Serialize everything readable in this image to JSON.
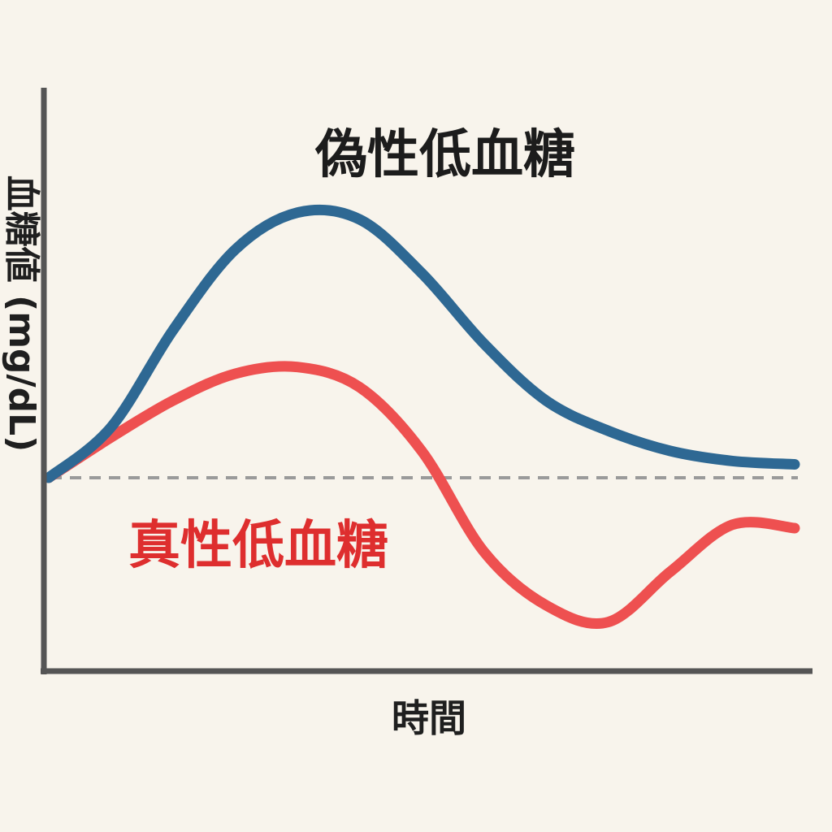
{
  "chart_data": {
    "type": "line",
    "xlabel": "時間",
    "ylabel": "血糖値 (mg/dL)",
    "x": [
      0,
      2,
      4,
      6,
      8,
      10,
      12,
      14,
      16,
      18,
      20,
      22,
      24
    ],
    "xlim": [
      0,
      24
    ],
    "ylim": [
      -100,
      100
    ],
    "baseline": 0,
    "series": [
      {
        "name": "偽性低血糖",
        "color": "#2e6893",
        "values": [
          0,
          15,
          44,
          68,
          79,
          77,
          61,
          40,
          23,
          14,
          8,
          5,
          4
        ]
      },
      {
        "name": "真性低血糖",
        "color": "#ee5050",
        "values": [
          0,
          12,
          23,
          31,
          33,
          27,
          8,
          -22,
          -38,
          -43,
          -28,
          -14,
          -15
        ]
      }
    ],
    "colors": {
      "axis": "#555555",
      "baseline": "#9a9a9a",
      "background": "#f8f4ec",
      "label_false": "#1c1c1c",
      "label_true": "#de2e2e"
    },
    "grid": false,
    "legend": "inline"
  }
}
